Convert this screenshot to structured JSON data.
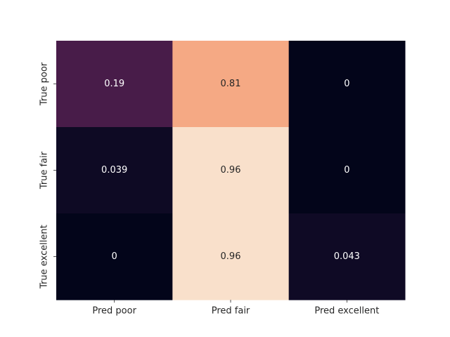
{
  "chart_data": {
    "type": "heatmap",
    "title": "",
    "xlabel": "",
    "ylabel": "",
    "x_labels": [
      "Pred poor",
      "Pred fair",
      "Pred excellent"
    ],
    "y_labels": [
      "True poor",
      "True fair",
      "True excellent"
    ],
    "values": [
      [
        0.19,
        0.81,
        0
      ],
      [
        0.039,
        0.96,
        0
      ],
      [
        0,
        0.96,
        0.043
      ]
    ],
    "cell_labels": [
      [
        "0.19",
        "0.81",
        "0"
      ],
      [
        "0.039",
        "0.96",
        "0"
      ],
      [
        "0",
        "0.96",
        "0.043"
      ]
    ],
    "colormap": "rocket",
    "value_range": [
      0,
      1
    ],
    "colorbar": false,
    "grid": false
  }
}
